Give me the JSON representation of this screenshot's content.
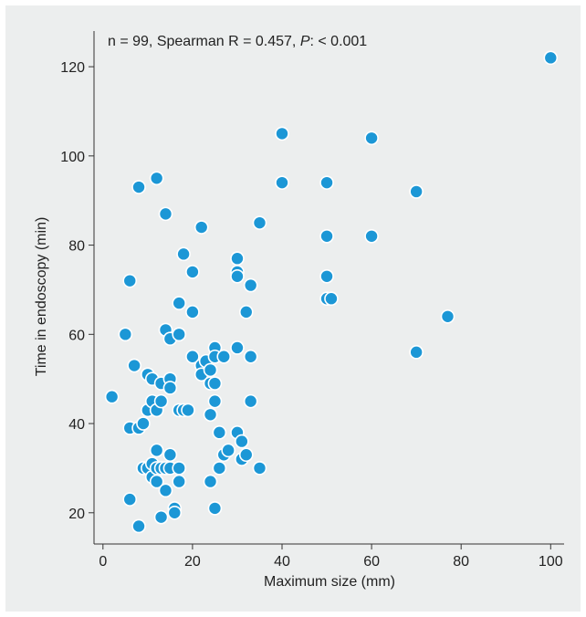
{
  "chart_data": {
    "type": "scatter",
    "annotation": {
      "prefix": "n = 99, Spearman R = 0.457, ",
      "p_label": "P",
      "suffix": ": < 0.001"
    },
    "xlabel": "Maximum size (mm)",
    "ylabel": "Time in endoscopy (min)",
    "xlim": [
      -2,
      103
    ],
    "ylim": [
      13,
      128
    ],
    "x_ticks": [
      0,
      20,
      40,
      60,
      80,
      100
    ],
    "y_ticks": [
      20,
      40,
      60,
      80,
      100,
      120
    ],
    "grid": false,
    "point_color": "#1c97d6",
    "points": [
      {
        "x": 2,
        "y": 46
      },
      {
        "x": 5,
        "y": 60
      },
      {
        "x": 6,
        "y": 72
      },
      {
        "x": 6,
        "y": 39
      },
      {
        "x": 6,
        "y": 23
      },
      {
        "x": 7,
        "y": 53
      },
      {
        "x": 8,
        "y": 93
      },
      {
        "x": 8,
        "y": 39
      },
      {
        "x": 8,
        "y": 17
      },
      {
        "x": 9,
        "y": 30
      },
      {
        "x": 9,
        "y": 40
      },
      {
        "x": 10,
        "y": 30
      },
      {
        "x": 10,
        "y": 43
      },
      {
        "x": 10,
        "y": 51
      },
      {
        "x": 11,
        "y": 28
      },
      {
        "x": 11,
        "y": 31
      },
      {
        "x": 11,
        "y": 45
      },
      {
        "x": 11,
        "y": 50
      },
      {
        "x": 12,
        "y": 95
      },
      {
        "x": 12,
        "y": 34
      },
      {
        "x": 12,
        "y": 43
      },
      {
        "x": 12,
        "y": 30
      },
      {
        "x": 12,
        "y": 27
      },
      {
        "x": 13,
        "y": 49
      },
      {
        "x": 13,
        "y": 45
      },
      {
        "x": 13,
        "y": 30
      },
      {
        "x": 13,
        "y": 19
      },
      {
        "x": 14,
        "y": 87
      },
      {
        "x": 14,
        "y": 61
      },
      {
        "x": 14,
        "y": 30
      },
      {
        "x": 14,
        "y": 25
      },
      {
        "x": 15,
        "y": 59
      },
      {
        "x": 15,
        "y": 50
      },
      {
        "x": 15,
        "y": 48
      },
      {
        "x": 15,
        "y": 33
      },
      {
        "x": 15,
        "y": 30
      },
      {
        "x": 16,
        "y": 21
      },
      {
        "x": 16,
        "y": 20
      },
      {
        "x": 17,
        "y": 67
      },
      {
        "x": 17,
        "y": 60
      },
      {
        "x": 17,
        "y": 43
      },
      {
        "x": 17,
        "y": 30
      },
      {
        "x": 17,
        "y": 27
      },
      {
        "x": 18,
        "y": 78
      },
      {
        "x": 18,
        "y": 43
      },
      {
        "x": 19,
        "y": 43
      },
      {
        "x": 20,
        "y": 74
      },
      {
        "x": 20,
        "y": 65
      },
      {
        "x": 20,
        "y": 55
      },
      {
        "x": 22,
        "y": 84
      },
      {
        "x": 22,
        "y": 53
      },
      {
        "x": 22,
        "y": 51
      },
      {
        "x": 23,
        "y": 54
      },
      {
        "x": 24,
        "y": 52
      },
      {
        "x": 24,
        "y": 49
      },
      {
        "x": 24,
        "y": 42
      },
      {
        "x": 24,
        "y": 27
      },
      {
        "x": 25,
        "y": 57
      },
      {
        "x": 25,
        "y": 55
      },
      {
        "x": 25,
        "y": 49
      },
      {
        "x": 25,
        "y": 45
      },
      {
        "x": 25,
        "y": 21
      },
      {
        "x": 26,
        "y": 38
      },
      {
        "x": 26,
        "y": 30
      },
      {
        "x": 27,
        "y": 55
      },
      {
        "x": 27,
        "y": 33
      },
      {
        "x": 28,
        "y": 34
      },
      {
        "x": 30,
        "y": 77
      },
      {
        "x": 30,
        "y": 74
      },
      {
        "x": 30,
        "y": 73
      },
      {
        "x": 30,
        "y": 57
      },
      {
        "x": 30,
        "y": 38
      },
      {
        "x": 31,
        "y": 36
      },
      {
        "x": 31,
        "y": 32
      },
      {
        "x": 32,
        "y": 65
      },
      {
        "x": 32,
        "y": 33
      },
      {
        "x": 33,
        "y": 71
      },
      {
        "x": 33,
        "y": 55
      },
      {
        "x": 33,
        "y": 45
      },
      {
        "x": 35,
        "y": 85
      },
      {
        "x": 35,
        "y": 30
      },
      {
        "x": 40,
        "y": 105
      },
      {
        "x": 40,
        "y": 94
      },
      {
        "x": 50,
        "y": 94
      },
      {
        "x": 50,
        "y": 82
      },
      {
        "x": 50,
        "y": 73
      },
      {
        "x": 50,
        "y": 68
      },
      {
        "x": 51,
        "y": 68
      },
      {
        "x": 60,
        "y": 104
      },
      {
        "x": 60,
        "y": 82
      },
      {
        "x": 70,
        "y": 92
      },
      {
        "x": 70,
        "y": 56
      },
      {
        "x": 77,
        "y": 64
      },
      {
        "x": 100,
        "y": 122
      }
    ]
  }
}
